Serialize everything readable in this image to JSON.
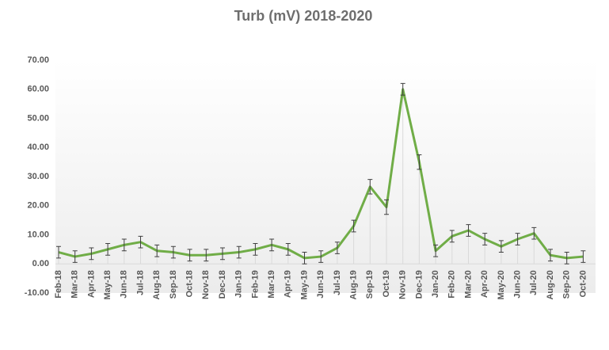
{
  "chart_data": {
    "type": "line",
    "title": "Turb (mV) 2018-2020",
    "categories": [
      "Feb-18",
      "Mar-18",
      "Apr-18",
      "May-18",
      "Jun-18",
      "Jul-18",
      "Aug-18",
      "Sep-18",
      "Oct-18",
      "Nov-18",
      "Dec-18",
      "Jan-19",
      "Feb-19",
      "Mar-19",
      "Apr-19",
      "May-19",
      "Jun-19",
      "Jul-19",
      "Aug-19",
      "Sep-19",
      "Oct-19",
      "Nov-19",
      "Dec-19",
      "Jan-20",
      "Feb-20",
      "Mar-20",
      "Apr-20",
      "May-20",
      "Jun-20",
      "Jul-20",
      "Aug-20",
      "Sep-20",
      "Oct-20"
    ],
    "series": [
      {
        "name": "Turb (mV)",
        "color": "#70ad47",
        "values": [
          4,
          2.5,
          3.5,
          5,
          6.5,
          7.5,
          4.5,
          4,
          3,
          3,
          3.5,
          4,
          5,
          6.5,
          5,
          2,
          2.5,
          5.5,
          13,
          26.5,
          19.5,
          60,
          35,
          4.5,
          9.5,
          11.5,
          8.5,
          6,
          8.5,
          10.5,
          3,
          2,
          2.5
        ],
        "errors": [
          2,
          2,
          2,
          2,
          2,
          2,
          2,
          2,
          2,
          2,
          2,
          2,
          2,
          2,
          2,
          2,
          2,
          2,
          2,
          2.5,
          2.5,
          2,
          2.5,
          2,
          2,
          2,
          2,
          2,
          2,
          2,
          2,
          2,
          2
        ]
      }
    ],
    "ylim": [
      -10,
      70
    ],
    "yticks": [
      {
        "value": -10,
        "label": "-10.00"
      },
      {
        "value": 0,
        "label": "0.00"
      },
      {
        "value": 10,
        "label": "10.00"
      },
      {
        "value": 20,
        "label": "20.00"
      },
      {
        "value": 30,
        "label": "30.00"
      },
      {
        "value": 40,
        "label": "40.00"
      },
      {
        "value": 50,
        "label": "50.00"
      },
      {
        "value": 60,
        "label": "60.00"
      },
      {
        "value": 70,
        "label": "70.00"
      }
    ],
    "grid": false
  }
}
